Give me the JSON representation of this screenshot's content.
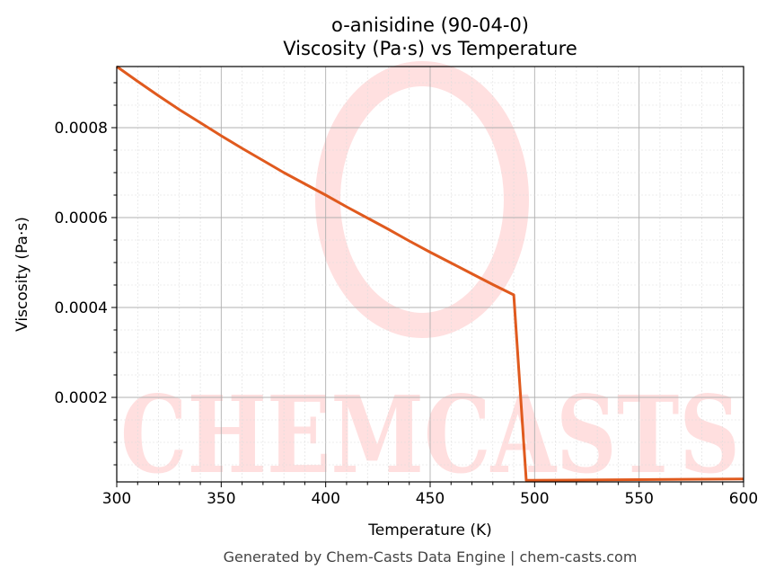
{
  "chart_data": {
    "type": "line",
    "title": "o-anisidine (90-04-0)",
    "subtitle": "Viscosity (Pa·s) vs Temperature",
    "xlabel": "Temperature (K)",
    "ylabel": "Viscosity (Pa·s)",
    "xlim": [
      300,
      600
    ],
    "ylim": [
      1.2e-05,
      0.000936
    ],
    "xticks": [
      300,
      350,
      400,
      450,
      500,
      550,
      600
    ],
    "xtick_labels": [
      "300",
      "350",
      "400",
      "450",
      "500",
      "550",
      "600"
    ],
    "yticks": [
      0.0002,
      0.0004,
      0.0006,
      0.0008
    ],
    "ytick_labels": [
      "0.0002",
      "0.0004",
      "0.0006",
      "0.0008"
    ],
    "grid": true,
    "series": [
      {
        "color": "#e05a1e",
        "x": [
          300,
          310,
          320,
          330,
          340,
          350,
          360,
          370,
          380,
          390,
          400,
          410,
          420,
          430,
          440,
          450,
          460,
          470,
          480,
          490,
          496,
          600
        ],
        "y": [
          0.000936,
          0.000903,
          0.000871,
          0.00084,
          0.000811,
          0.000782,
          0.000754,
          0.000727,
          0.0007,
          0.000675,
          0.00065,
          0.000624,
          0.000599,
          0.000574,
          0.000548,
          0.000523,
          0.000499,
          0.000475,
          0.000451,
          0.000428,
          1.55e-05,
          1.86e-05
        ]
      }
    ],
    "watermark": "CHEMCASTS"
  },
  "footer": "Generated by Chem-Casts Data Engine | chem-casts.com"
}
